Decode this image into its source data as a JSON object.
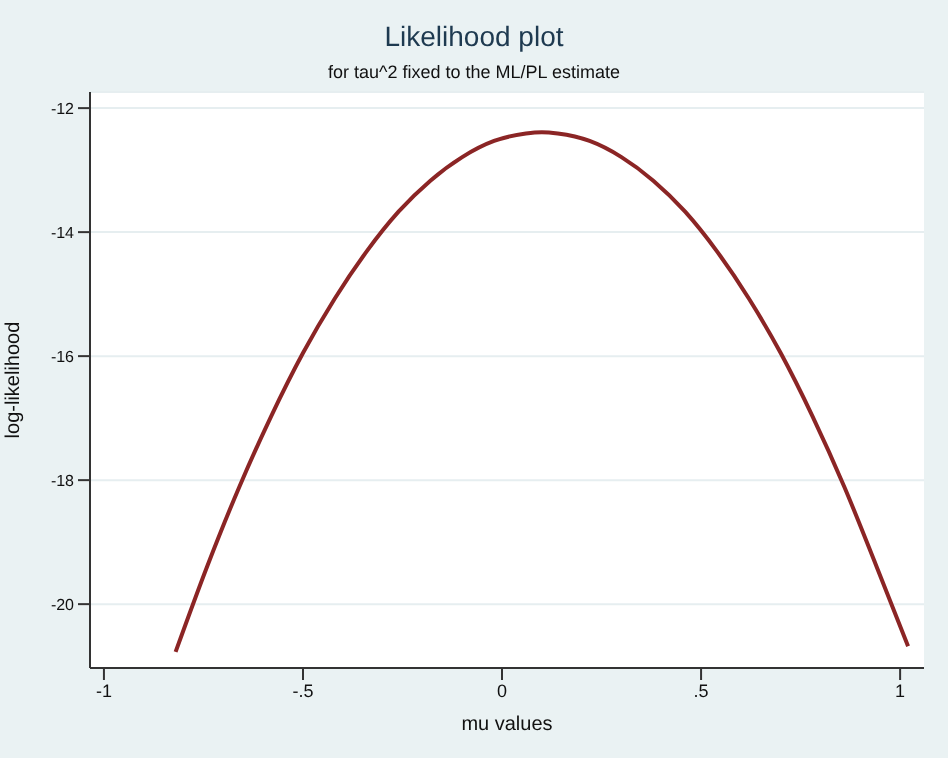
{
  "chart_data": {
    "type": "line",
    "title": "Likelihood plot",
    "subtitle": "for tau^2 fixed to the ML/PL estimate",
    "xlabel": "mu values",
    "ylabel": "log-likelihood",
    "series": [
      {
        "color": "#8b2525",
        "x": [
          -0.82,
          -0.74,
          -0.66,
          -0.58,
          -0.5,
          -0.42,
          -0.34,
          -0.26,
          -0.18,
          -0.1,
          -0.02,
          0.06,
          0.1,
          0.14,
          0.22,
          0.3,
          0.38,
          0.46,
          0.54,
          0.62,
          0.7,
          0.78,
          0.86,
          0.94,
          1.02
        ],
        "values": [
          -20.77,
          -19.38,
          -18.11,
          -16.97,
          -15.95,
          -15.07,
          -14.31,
          -13.67,
          -13.17,
          -12.79,
          -12.53,
          -12.41,
          -12.39,
          -12.41,
          -12.53,
          -12.79,
          -13.17,
          -13.67,
          -14.31,
          -15.07,
          -15.95,
          -16.97,
          -18.11,
          -19.38,
          -20.68
        ]
      }
    ],
    "xlim": [
      -1.035,
      1.06
    ],
    "xticks": [
      -1,
      {
        "value": -0.5,
        "label": "-.5"
      },
      0,
      {
        "value": 0.5,
        "label": ".5"
      },
      1
    ],
    "ylim": [
      -21.03,
      -11.74
    ],
    "yticks": [
      -20,
      -18,
      -16,
      -14,
      -12
    ],
    "grid": "y",
    "marker": "none",
    "line_style": "solid"
  }
}
